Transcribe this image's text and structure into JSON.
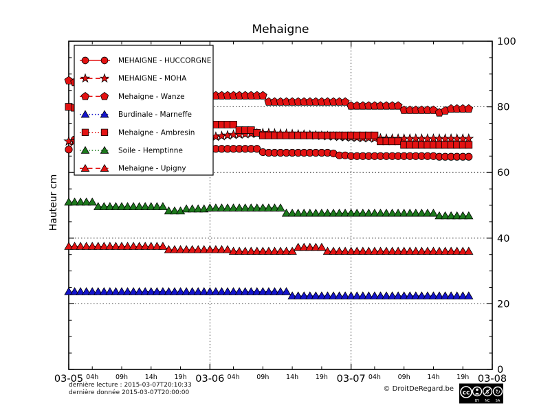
{
  "title": "Mehaigne",
  "ylabel": "Hauteur cm",
  "footer": {
    "last_reading": "dernière lecture : 2015-03-07T20:10:33",
    "last_data": "dernière donnée  2015-03-07T20:00:00",
    "credit": "© DroitDeRegard.be",
    "license_badges": [
      "CC",
      "BY",
      "NC",
      "SA"
    ]
  },
  "colors": {
    "red": "#e31212",
    "blue": "#1414cc",
    "green": "#1d7a1d",
    "marker_edge": "#000000"
  },
  "chart_data": {
    "type": "line",
    "title": "Mehaigne",
    "xlabel": "",
    "ylabel": "Hauteur cm",
    "ylim": [
      0,
      100
    ],
    "x_time_start": "2015-03-05T00:00",
    "x_time_end": "2015-03-07T20:00",
    "x_step_hours": 1,
    "x_axis_span_hours": 72,
    "grid": "dotted",
    "grid_h_values": [
      20,
      40,
      60,
      80
    ],
    "grid_v_hours": [
      24,
      48
    ],
    "legend_position": "upper left",
    "x_major_ticks": [
      {
        "t": 0,
        "label": "03-05"
      },
      {
        "t": 24,
        "label": "03-06"
      },
      {
        "t": 48,
        "label": "03-07"
      },
      {
        "t": 72,
        "label": "03-08"
      }
    ],
    "x_minor_ticks": [
      {
        "t": 4,
        "label": "04h"
      },
      {
        "t": 9,
        "label": "09h"
      },
      {
        "t": 14,
        "label": "14h"
      },
      {
        "t": 19,
        "label": "19h"
      },
      {
        "t": 28,
        "label": "04h"
      },
      {
        "t": 33,
        "label": "09h"
      },
      {
        "t": 38,
        "label": "14h"
      },
      {
        "t": 43,
        "label": "19h"
      },
      {
        "t": 52,
        "label": "04h"
      },
      {
        "t": 57,
        "label": "09h"
      },
      {
        "t": 62,
        "label": "14h"
      },
      {
        "t": 67,
        "label": "19h"
      }
    ],
    "y_major_ticks": [
      0,
      20,
      40,
      60,
      80,
      100
    ],
    "y_minor_step": 5,
    "series": [
      {
        "name": "MEHAIGNE - HUCCORGNE",
        "color": "#e31212",
        "marker": "circle",
        "line": "solid",
        "values": [
          67,
          70,
          70,
          69.8,
          69.6,
          69.4,
          69.2,
          69,
          68.8,
          68.6,
          68.4,
          68.2,
          68,
          67.8,
          67.6,
          67.4,
          67.2,
          67,
          66.8,
          66.6,
          66.4,
          66.2,
          66,
          65,
          66.5,
          67.2,
          67.2,
          67.2,
          67.2,
          67.2,
          67.2,
          67.2,
          67.2,
          66.2,
          66,
          66,
          66,
          66,
          66,
          66,
          66,
          66,
          66,
          66,
          66,
          65.8,
          65.2,
          65.2,
          65,
          65,
          65,
          65,
          65,
          65,
          65,
          65,
          65,
          65,
          65,
          65,
          65,
          65,
          65,
          64.8,
          64.8,
          64.8,
          64.8,
          64.8,
          64.8
        ]
      },
      {
        "name": "MEHAIGNE - MOHA",
        "color": "#e31212",
        "marker": "star",
        "line": "dashed",
        "values": [
          69.5,
          69.5,
          69.5,
          69.5,
          69.5,
          69.5,
          69.5,
          69.5,
          69.5,
          69.5,
          69.5,
          69.5,
          69.5,
          69.5,
          69.5,
          69.5,
          69.8,
          69.9,
          70,
          70,
          70.1,
          70.1,
          70.2,
          70.3,
          70.6,
          70.9,
          71.1,
          71.3,
          71.5,
          71.6,
          71.7,
          71.8,
          71.9,
          72,
          72,
          71.9,
          71.8,
          71.8,
          71.7,
          71.6,
          71.5,
          71.4,
          71.3,
          71.2,
          71.1,
          71,
          70.9,
          70.8,
          70.7,
          70.6,
          70.5,
          70.5,
          70.4,
          70.4,
          70.3,
          70.3,
          70.3,
          70.3,
          70.3,
          70.3,
          70.3,
          70.3,
          70.3,
          70.3,
          70.3,
          70.3,
          70.3,
          70.3,
          70.3
        ]
      },
      {
        "name": "Mehaigne - Wanze",
        "color": "#e31212",
        "marker": "pentagon",
        "line": "dashed",
        "values": [
          88,
          87.5,
          87,
          86.6,
          86.2,
          85.8,
          85.5,
          85.2,
          85,
          84.8,
          84.6,
          84.4,
          84.3,
          84.2,
          84.1,
          84,
          83.9,
          83.8,
          83.8,
          83.7,
          83.7,
          83.6,
          83.6,
          83.4,
          83.4,
          83.4,
          83.4,
          83.4,
          83.4,
          83.4,
          83.4,
          83.4,
          83.4,
          83.4,
          81.5,
          81.5,
          81.5,
          81.5,
          81.5,
          81.5,
          81.5,
          81.5,
          81.5,
          81.5,
          81.5,
          81.5,
          81.5,
          81.5,
          80.3,
          80.3,
          80.3,
          80.3,
          80.3,
          80.3,
          80.3,
          80.3,
          80.3,
          79,
          79,
          79,
          79,
          79,
          79,
          78.2,
          78.8,
          79.4,
          79.4,
          79.4,
          79.4
        ]
      },
      {
        "name": "Burdinale - Marneffe",
        "color": "#1414cc",
        "marker": "triangle",
        "line": "dotted",
        "values": [
          23.7,
          23.7,
          23.7,
          23.7,
          23.7,
          23.7,
          23.7,
          23.7,
          23.7,
          23.7,
          23.7,
          23.7,
          23.7,
          23.7,
          23.7,
          23.7,
          23.7,
          23.7,
          23.7,
          23.7,
          23.7,
          23.7,
          23.7,
          23.7,
          23.7,
          23.7,
          23.7,
          23.7,
          23.7,
          23.7,
          23.7,
          23.7,
          23.7,
          23.7,
          23.7,
          23.7,
          23.7,
          23.7,
          22.4,
          22.4,
          22.4,
          22.4,
          22.4,
          22.4,
          22.4,
          22.4,
          22.4,
          22.4,
          22.4,
          22.4,
          22.4,
          22.4,
          22.4,
          22.4,
          22.4,
          22.4,
          22.4,
          22.4,
          22.4,
          22.4,
          22.4,
          22.4,
          22.4,
          22.4,
          22.4,
          22.4,
          22.4,
          22.4,
          22.4
        ]
      },
      {
        "name": "Mehaigne - Ambresin",
        "color": "#e31212",
        "marker": "square",
        "line": "dotted",
        "values": [
          80,
          79.7,
          79.4,
          79.1,
          78.8,
          78.5,
          78.2,
          77.9,
          77.6,
          77.3,
          77,
          76.8,
          76.6,
          76.4,
          76.2,
          76,
          75.8,
          75.6,
          75.4,
          75.2,
          75,
          74.8,
          74.7,
          74.6,
          74.6,
          74.6,
          74.6,
          74.6,
          74.6,
          72.9,
          72.9,
          72.9,
          72.1,
          71.3,
          71.3,
          71.3,
          71.3,
          71.3,
          71.3,
          71.3,
          71.3,
          71.3,
          71.3,
          71.3,
          71.3,
          71.3,
          71.3,
          71.3,
          71.3,
          71.3,
          71.3,
          71.3,
          71.3,
          69.5,
          69.5,
          69.5,
          69.5,
          68.4,
          68.4,
          68.4,
          68.4,
          68.4,
          68.4,
          68.4,
          68.4,
          68.4,
          68.4,
          68.4,
          68.4
        ]
      },
      {
        "name": "Soile - Hemptinne",
        "color": "#1d7a1d",
        "marker": "triangle",
        "line": "dotted",
        "values": [
          51,
          51,
          51,
          51,
          51,
          49.6,
          49.6,
          49.6,
          49.6,
          49.6,
          49.6,
          49.6,
          49.6,
          49.6,
          49.6,
          49.6,
          49.6,
          48.3,
          48.3,
          48.3,
          48.9,
          48.9,
          48.9,
          48.9,
          49.2,
          49.2,
          49.2,
          49.2,
          49.2,
          49.2,
          49.2,
          49.2,
          49.2,
          49.2,
          49.2,
          49.2,
          49.2,
          47.6,
          47.6,
          47.6,
          47.6,
          47.6,
          47.6,
          47.6,
          47.6,
          47.6,
          47.6,
          47.6,
          47.6,
          47.6,
          47.6,
          47.6,
          47.6,
          47.6,
          47.6,
          47.6,
          47.6,
          47.6,
          47.6,
          47.6,
          47.6,
          47.6,
          47.6,
          46.8,
          46.8,
          46.8,
          46.8,
          46.8,
          46.8
        ]
      },
      {
        "name": "Mehaigne - Upigny",
        "color": "#e31212",
        "marker": "triangle",
        "line": "dashed",
        "values": [
          37.5,
          37.5,
          37.5,
          37.5,
          37.5,
          37.5,
          37.5,
          37.5,
          37.5,
          37.5,
          37.5,
          37.5,
          37.5,
          37.5,
          37.5,
          37.5,
          37.5,
          36.5,
          36.5,
          36.5,
          36.5,
          36.5,
          36.5,
          36.5,
          36.5,
          36.5,
          36.5,
          36.5,
          36,
          36,
          36,
          36,
          36,
          36,
          36,
          36,
          36,
          36,
          36,
          37.2,
          37.2,
          37.2,
          37.2,
          37.2,
          36,
          36,
          36,
          36,
          36,
          36,
          36,
          36,
          36,
          36,
          36,
          36,
          36,
          36,
          36,
          36,
          36,
          36,
          36,
          36,
          36,
          36,
          36,
          36,
          36
        ]
      }
    ]
  }
}
